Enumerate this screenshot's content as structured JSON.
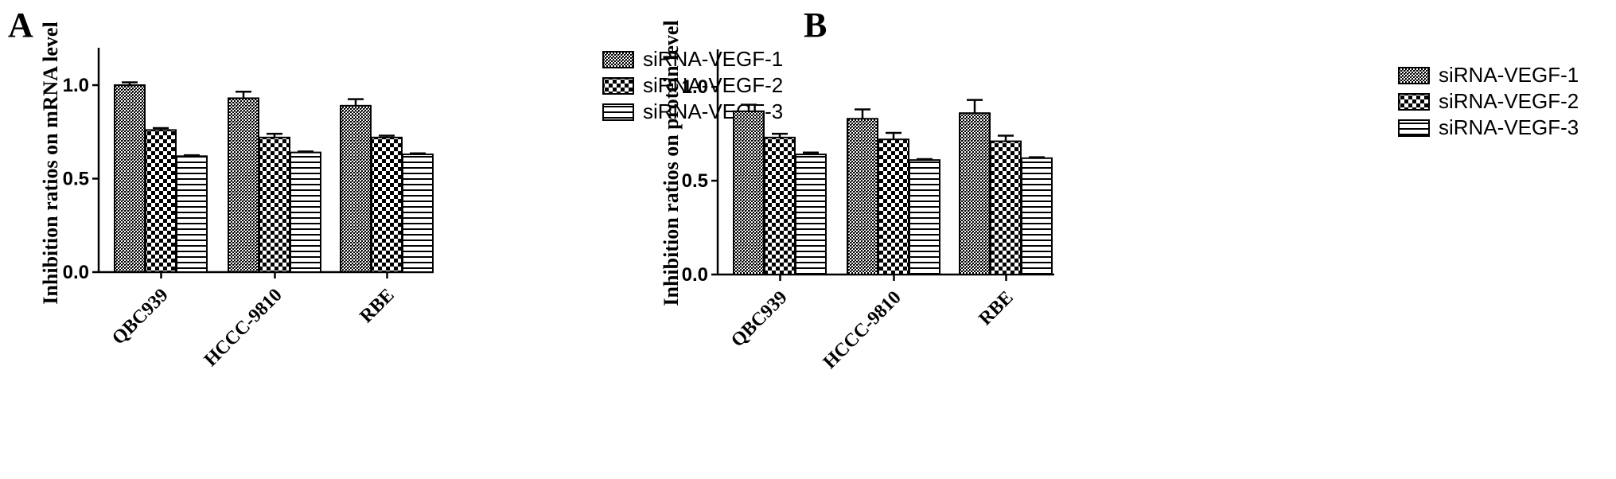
{
  "chart_data": [
    {
      "panel_label": "A",
      "type": "bar",
      "title": "",
      "xlabel": "",
      "ylabel": "Inhibition ratios on mRNA level",
      "ylim": [
        0,
        1.2
      ],
      "yticks": [
        "0.0",
        "0.5",
        "1.0"
      ],
      "categories": [
        "QBC939",
        "HCCC-9810",
        "RBE"
      ],
      "series": [
        {
          "name": "siRNA-VEGF-1",
          "values": [
            1.0,
            0.93,
            0.89
          ],
          "errors": [
            0.015,
            0.035,
            0.035
          ]
        },
        {
          "name": "siRNA-VEGF-2",
          "values": [
            0.76,
            0.72,
            0.72
          ],
          "errors": [
            0.01,
            0.02,
            0.01
          ]
        },
        {
          "name": "siRNA-VEGF-3",
          "values": [
            0.62,
            0.64,
            0.63
          ],
          "errors": [
            0.005,
            0.005,
            0.005
          ]
        }
      ],
      "patterns": [
        "dense-dots",
        "checker",
        "horizontal-lines"
      ],
      "legend_position": "right",
      "grid": false
    },
    {
      "panel_label": "B",
      "type": "bar",
      "title": "",
      "xlabel": "",
      "ylabel": "Inhibition ratios on protein level",
      "ylim": [
        0,
        1.2
      ],
      "yticks": [
        "0.0",
        "0.5",
        "1.0"
      ],
      "categories": [
        "QBC939",
        "HCCC-9810",
        "RBE"
      ],
      "series": [
        {
          "name": "siRNA-VEGF-1",
          "values": [
            0.87,
            0.83,
            0.86
          ],
          "errors": [
            0.035,
            0.05,
            0.07
          ]
        },
        {
          "name": "siRNA-VEGF-2",
          "values": [
            0.73,
            0.72,
            0.71
          ],
          "errors": [
            0.02,
            0.035,
            0.03
          ]
        },
        {
          "name": "siRNA-VEGF-3",
          "values": [
            0.64,
            0.61,
            0.62
          ],
          "errors": [
            0.01,
            0.005,
            0.005
          ]
        }
      ],
      "patterns": [
        "dense-dots",
        "checker",
        "horizontal-lines"
      ],
      "legend_position": "right",
      "grid": false
    }
  ]
}
